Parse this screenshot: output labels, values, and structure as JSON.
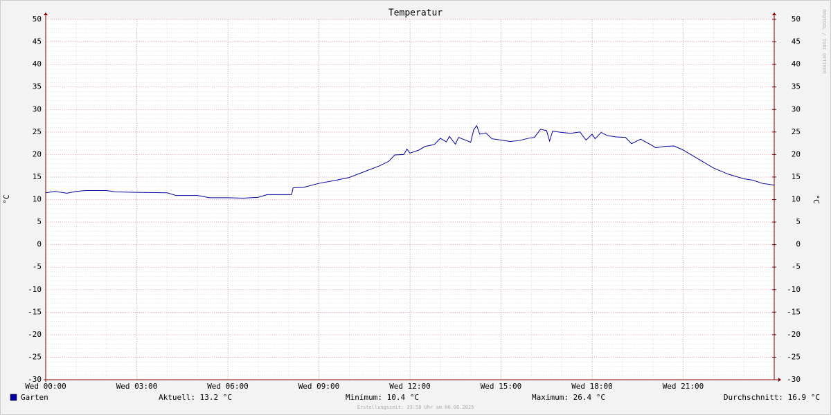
{
  "chart_data": {
    "type": "line",
    "title": "Temperatur",
    "y_label": "°C",
    "y2_label": "°C",
    "watermark": "RRDTOOL / TOBI OETIKER",
    "x": [
      0,
      0.3,
      0.7,
      1.0,
      1.3,
      2,
      2.3,
      3,
      4,
      4.3,
      5,
      5.4,
      6,
      6.5,
      7,
      7.3,
      8.1,
      8.15,
      8.5,
      9,
      9.5,
      10,
      10.5,
      11,
      11.3,
      11.5,
      11.8,
      11.9,
      12.0,
      12.3,
      12.5,
      12.8,
      13,
      13.2,
      13.3,
      13.5,
      13.6,
      13.9,
      14.0,
      14.1,
      14.2,
      14.3,
      14.5,
      14.7,
      15,
      15.3,
      15.6,
      15.9,
      16.1,
      16.3,
      16.5,
      16.6,
      16.7,
      17,
      17.3,
      17.6,
      17.8,
      18.0,
      18.1,
      18.3,
      18.5,
      18.8,
      19.1,
      19.3,
      19.6,
      19.9,
      20.1,
      20.4,
      20.7,
      21.0,
      21.5,
      22,
      22.5,
      23,
      23.3,
      23.6,
      24
    ],
    "series": [
      {
        "name": "Garten",
        "color": "#0000a0",
        "values": [
          11.5,
          11.8,
          11.4,
          11.8,
          12.0,
          12.0,
          11.7,
          11.6,
          11.5,
          10.9,
          10.9,
          10.4,
          10.4,
          10.3,
          10.5,
          11.1,
          11.1,
          12.6,
          12.7,
          13.6,
          14.2,
          14.9,
          16.2,
          17.5,
          18.5,
          19.9,
          20.0,
          21.2,
          20.3,
          21.0,
          21.8,
          22.2,
          23.6,
          22.8,
          24.0,
          22.3,
          23.8,
          23.0,
          22.7,
          25.5,
          26.4,
          24.5,
          24.8,
          23.5,
          23.2,
          22.9,
          23.1,
          23.6,
          23.8,
          25.6,
          25.3,
          23.0,
          25.2,
          24.9,
          24.7,
          25.0,
          23.2,
          24.5,
          23.5,
          24.9,
          24.2,
          23.9,
          23.8,
          22.4,
          23.4,
          22.3,
          21.5,
          21.8,
          21.9,
          21.0,
          19.0,
          17.0,
          15.6,
          14.6,
          14.3,
          13.6,
          13.2
        ]
      }
    ],
    "xlim": [
      0,
      24
    ],
    "xticks": [
      {
        "value": 0,
        "label": "Wed 00:00"
      },
      {
        "value": 3,
        "label": "Wed 03:00"
      },
      {
        "value": 6,
        "label": "Wed 06:00"
      },
      {
        "value": 9,
        "label": "Wed 09:00"
      },
      {
        "value": 12,
        "label": "Wed 12:00"
      },
      {
        "value": 15,
        "label": "Wed 15:00"
      },
      {
        "value": 18,
        "label": "Wed 18:00"
      },
      {
        "value": 21,
        "label": "Wed 21:00"
      }
    ],
    "ylim": [
      -30,
      50
    ],
    "yticks": [
      -30,
      -25,
      -20,
      -15,
      -10,
      -5,
      0,
      5,
      10,
      15,
      20,
      25,
      30,
      35,
      40,
      45,
      50
    ],
    "y2lim": [
      -30,
      50
    ],
    "y2ticks": [
      -30,
      -25,
      -20,
      -15,
      -10,
      -5,
      0,
      5,
      10,
      15,
      20,
      25,
      30,
      35,
      40,
      45,
      50
    ],
    "grid": true,
    "stats": [
      "Aktuell: 13.2 °C",
      "Minimum: 10.4 °C",
      "Maximum: 26.4 °C",
      "Durchschnitt: 16.9 °C"
    ],
    "footer": "Erstellungszeit: 23:58 Uhr am 06.08.2025"
  }
}
